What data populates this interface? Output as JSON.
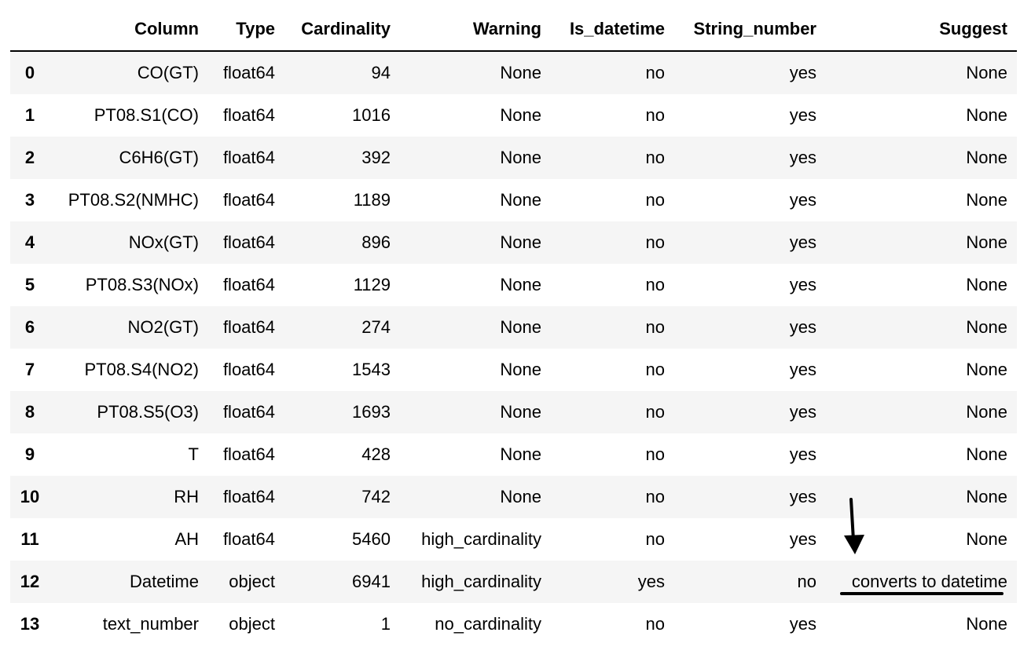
{
  "table": {
    "headers": [
      "",
      "Column",
      "Type",
      "Cardinality",
      "Warning",
      "Is_datetime",
      "String_number",
      "Suggest"
    ],
    "rows": [
      {
        "index": "0",
        "column": "CO(GT)",
        "type": "float64",
        "cardinality": "94",
        "warning": "None",
        "is_datetime": "no",
        "string_number": "yes",
        "suggest": "None"
      },
      {
        "index": "1",
        "column": "PT08.S1(CO)",
        "type": "float64",
        "cardinality": "1016",
        "warning": "None",
        "is_datetime": "no",
        "string_number": "yes",
        "suggest": "None"
      },
      {
        "index": "2",
        "column": "C6H6(GT)",
        "type": "float64",
        "cardinality": "392",
        "warning": "None",
        "is_datetime": "no",
        "string_number": "yes",
        "suggest": "None"
      },
      {
        "index": "3",
        "column": "PT08.S2(NMHC)",
        "type": "float64",
        "cardinality": "1189",
        "warning": "None",
        "is_datetime": "no",
        "string_number": "yes",
        "suggest": "None"
      },
      {
        "index": "4",
        "column": "NOx(GT)",
        "type": "float64",
        "cardinality": "896",
        "warning": "None",
        "is_datetime": "no",
        "string_number": "yes",
        "suggest": "None"
      },
      {
        "index": "5",
        "column": "PT08.S3(NOx)",
        "type": "float64",
        "cardinality": "1129",
        "warning": "None",
        "is_datetime": "no",
        "string_number": "yes",
        "suggest": "None"
      },
      {
        "index": "6",
        "column": "NO2(GT)",
        "type": "float64",
        "cardinality": "274",
        "warning": "None",
        "is_datetime": "no",
        "string_number": "yes",
        "suggest": "None"
      },
      {
        "index": "7",
        "column": "PT08.S4(NO2)",
        "type": "float64",
        "cardinality": "1543",
        "warning": "None",
        "is_datetime": "no",
        "string_number": "yes",
        "suggest": "None"
      },
      {
        "index": "8",
        "column": "PT08.S5(O3)",
        "type": "float64",
        "cardinality": "1693",
        "warning": "None",
        "is_datetime": "no",
        "string_number": "yes",
        "suggest": "None"
      },
      {
        "index": "9",
        "column": "T",
        "type": "float64",
        "cardinality": "428",
        "warning": "None",
        "is_datetime": "no",
        "string_number": "yes",
        "suggest": "None"
      },
      {
        "index": "10",
        "column": "RH",
        "type": "float64",
        "cardinality": "742",
        "warning": "None",
        "is_datetime": "no",
        "string_number": "yes",
        "suggest": "None"
      },
      {
        "index": "11",
        "column": "AH",
        "type": "float64",
        "cardinality": "5460",
        "warning": "high_cardinality",
        "is_datetime": "no",
        "string_number": "yes",
        "suggest": "None"
      },
      {
        "index": "12",
        "column": "Datetime",
        "type": "object",
        "cardinality": "6941",
        "warning": "high_cardinality",
        "is_datetime": "yes",
        "string_number": "no",
        "suggest": "converts to datetime"
      },
      {
        "index": "13",
        "column": "text_number",
        "type": "object",
        "cardinality": "1",
        "warning": "no_cardinality",
        "is_datetime": "no",
        "string_number": "yes",
        "suggest": "None"
      }
    ]
  },
  "annotation": {
    "icon": "down-arrow-icon",
    "color": "#000000"
  }
}
